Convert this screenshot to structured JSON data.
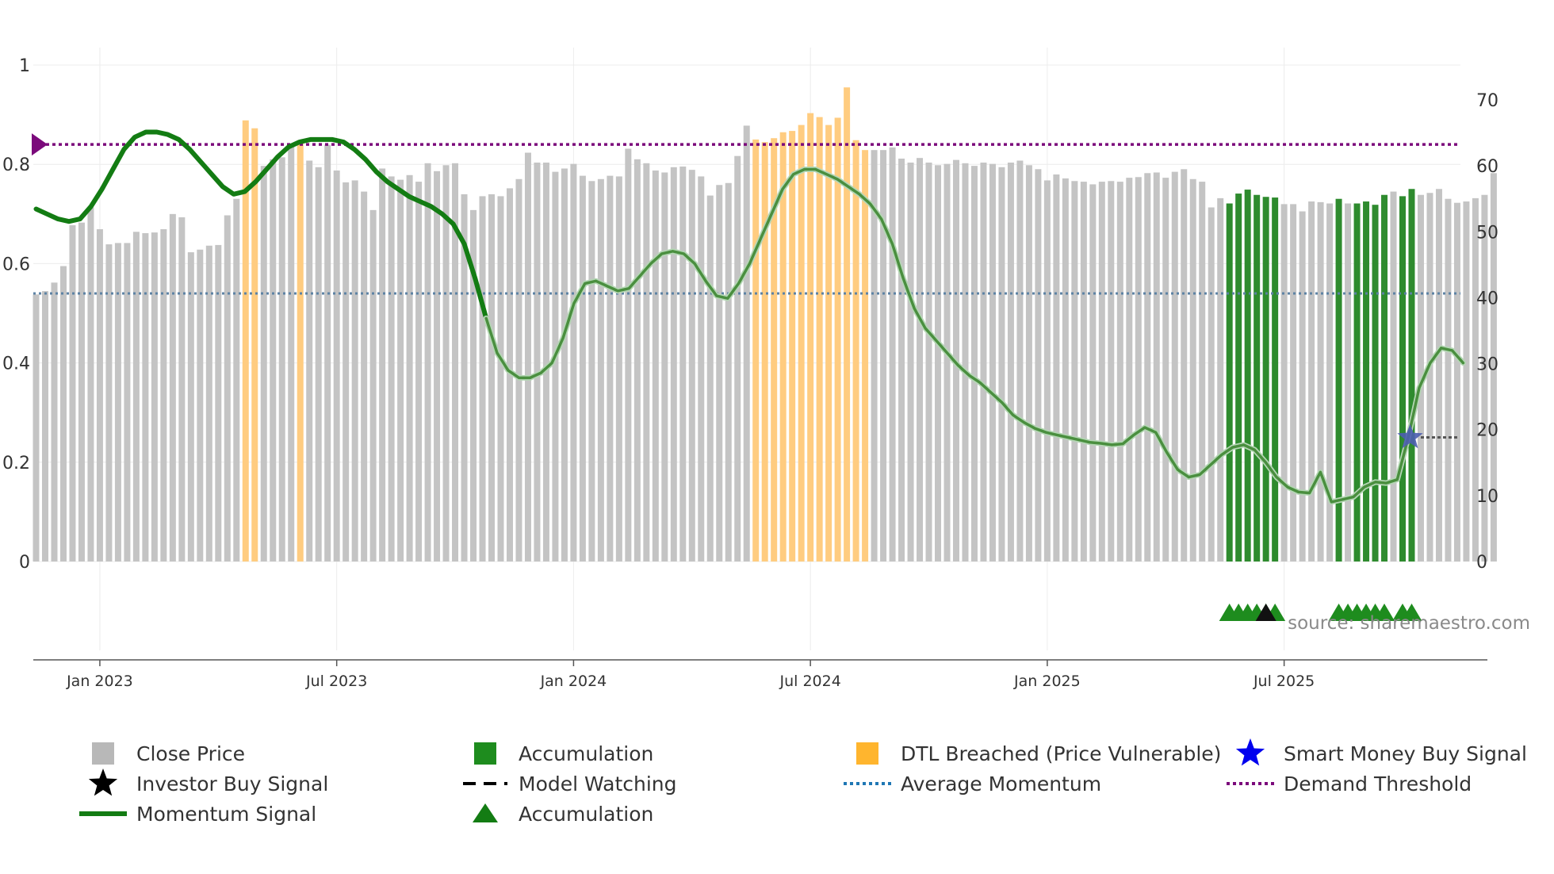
{
  "chart_data": {
    "type": "bar",
    "source": "source: sharemaestro.com",
    "left_axis": {
      "ticks": [
        0,
        0.2,
        0.4,
        0.6,
        0.8,
        1
      ],
      "labels": [
        "0",
        "0.2",
        "0.4",
        "0.6",
        "0.8",
        "1"
      ],
      "range": [
        0,
        1
      ]
    },
    "right_axis": {
      "ticks": [
        0,
        10,
        20,
        30,
        40,
        50,
        60,
        70
      ],
      "labels": [
        "0",
        "10",
        "20",
        "30",
        "40",
        "50",
        "60",
        "70"
      ],
      "range": [
        0,
        70
      ]
    },
    "x_ticks": [
      {
        "label": "Jan 2023",
        "week": 8
      },
      {
        "label": "Jul 2023",
        "week": 34
      },
      {
        "label": "Jan 2024",
        "week": 60
      },
      {
        "label": "Jul 2024",
        "week": 86
      },
      {
        "label": "Jan 2025",
        "week": 112
      },
      {
        "label": "Jul 2025",
        "week": 138
      }
    ],
    "x_range": [
      1,
      157
    ],
    "close_prices": [
      40.5,
      41.0,
      42.3,
      44.8,
      51.0,
      51.4,
      53.7,
      50.4,
      48.1,
      48.3,
      48.3,
      50.0,
      49.8,
      49.9,
      50.4,
      52.7,
      52.2,
      46.9,
      47.3,
      47.9,
      48.0,
      52.5,
      55.0,
      66.9,
      65.7,
      60.0,
      61.0,
      61.3,
      63.0,
      63.8,
      60.8,
      59.8,
      63.2,
      59.3,
      57.5,
      57.8,
      56.1,
      53.3,
      59.6,
      58.4,
      57.9,
      58.6,
      57.6,
      60.4,
      59.2,
      60.1,
      60.4,
      55.7,
      53.3,
      55.4,
      55.7,
      55.4,
      56.6,
      58.0,
      62.0,
      60.5,
      60.5,
      59.1,
      59.6,
      60.3,
      58.5,
      57.7,
      58.0,
      58.5,
      58.4,
      62.6,
      61.0,
      60.4,
      59.3,
      59.0,
      59.8,
      59.9,
      59.4,
      58.4,
      55.5,
      57.1,
      57.4,
      61.5,
      66.1,
      64.0,
      63.6,
      64.2,
      65.1,
      65.3,
      66.2,
      68.0,
      67.4,
      66.2,
      67.3,
      71.9,
      63.9,
      62.4,
      62.4,
      62.4,
      62.8,
      61.1,
      60.5,
      61.2,
      60.5,
      60.1,
      60.3,
      60.9,
      60.4,
      60.0,
      60.5,
      60.3,
      59.8,
      60.5,
      60.8,
      60.1,
      59.5,
      57.8,
      58.7,
      58.1,
      57.7,
      57.6,
      57.2,
      57.6,
      57.7,
      57.6,
      58.2,
      58.3,
      58.9,
      59.0,
      58.2,
      59.1,
      59.5,
      58.0,
      57.6,
      53.7,
      55.1,
      54.3,
      55.8,
      56.4,
      55.6,
      55.3,
      55.2,
      54.2,
      54.2,
      53.1,
      54.6,
      54.5,
      54.3,
      55.0,
      54.3,
      54.3,
      54.6,
      54.1,
      55.6,
      56.1,
      55.4,
      56.5,
      55.6,
      55.9,
      56.5,
      55.0,
      54.4,
      54.6,
      55.1,
      55.6,
      58.9
    ],
    "bar_colors": {
      "normal": "#c4c4c4",
      "dtl": "#ffcc80",
      "accumulation": "#2e8b2e"
    },
    "dtl_weeks": [
      24,
      25,
      30,
      80,
      81,
      82,
      83,
      84,
      85,
      86,
      87,
      88,
      89,
      90,
      91,
      92
    ],
    "accumulation_weeks": [
      132,
      133,
      134,
      135,
      136,
      137,
      144,
      146,
      147,
      148,
      149,
      151,
      152
    ],
    "momentum_signal": [
      [
        1,
        0.71
      ],
      [
        2,
        0.7
      ],
      [
        3,
        0.69
      ],
      [
        4,
        0.685
      ],
      [
        5,
        0.69
      ],
      [
        6,
        0.715
      ],
      [
        7,
        0.75
      ],
      [
        8,
        0.79
      ],
      [
        9,
        0.83
      ],
      [
        10,
        0.855
      ],
      [
        11,
        0.865
      ],
      [
        12,
        0.865
      ],
      [
        13,
        0.86
      ],
      [
        14,
        0.85
      ],
      [
        15,
        0.83
      ],
      [
        16,
        0.805
      ],
      [
        17,
        0.78
      ],
      [
        18,
        0.755
      ],
      [
        19,
        0.74
      ],
      [
        20,
        0.745
      ],
      [
        21,
        0.765
      ],
      [
        22,
        0.79
      ],
      [
        23,
        0.815
      ],
      [
        24,
        0.835
      ],
      [
        25,
        0.845
      ],
      [
        26,
        0.85
      ],
      [
        27,
        0.85
      ],
      [
        28,
        0.85
      ],
      [
        29,
        0.845
      ],
      [
        30,
        0.83
      ],
      [
        31,
        0.81
      ],
      [
        32,
        0.785
      ],
      [
        33,
        0.765
      ],
      [
        34,
        0.75
      ],
      [
        35,
        0.735
      ],
      [
        36,
        0.725
      ],
      [
        37,
        0.715
      ],
      [
        38,
        0.7
      ],
      [
        39,
        0.68
      ],
      [
        40,
        0.64
      ],
      [
        41,
        0.57
      ],
      [
        42,
        0.49
      ],
      [
        43,
        0.42
      ],
      [
        44,
        0.385
      ],
      [
        45,
        0.37
      ],
      [
        46,
        0.37
      ],
      [
        47,
        0.38
      ],
      [
        48,
        0.4
      ],
      [
        49,
        0.45
      ],
      [
        50,
        0.52
      ],
      [
        51,
        0.56
      ],
      [
        52,
        0.565
      ],
      [
        53,
        0.555
      ],
      [
        54,
        0.545
      ],
      [
        55,
        0.55
      ],
      [
        56,
        0.575
      ],
      [
        57,
        0.6
      ],
      [
        58,
        0.62
      ],
      [
        59,
        0.625
      ],
      [
        60,
        0.62
      ],
      [
        61,
        0.6
      ],
      [
        62,
        0.565
      ],
      [
        63,
        0.535
      ],
      [
        64,
        0.53
      ],
      [
        65,
        0.56
      ],
      [
        66,
        0.6
      ],
      [
        67,
        0.65
      ],
      [
        68,
        0.7
      ],
      [
        69,
        0.75
      ],
      [
        70,
        0.78
      ],
      [
        71,
        0.79
      ],
      [
        72,
        0.79
      ],
      [
        73,
        0.78
      ],
      [
        74,
        0.77
      ],
      [
        75,
        0.755
      ],
      [
        76,
        0.74
      ],
      [
        77,
        0.72
      ],
      [
        78,
        0.69
      ],
      [
        79,
        0.64
      ],
      [
        80,
        0.57
      ],
      [
        81,
        0.51
      ],
      [
        82,
        0.47
      ],
      [
        83,
        0.445
      ],
      [
        84,
        0.42
      ],
      [
        85,
        0.395
      ],
      [
        86,
        0.375
      ],
      [
        87,
        0.36
      ],
      [
        88,
        0.34
      ],
      [
        89,
        0.32
      ],
      [
        90,
        0.295
      ],
      [
        91,
        0.28
      ],
      [
        92,
        0.268
      ],
      [
        93,
        0.26
      ],
      [
        94,
        0.255
      ],
      [
        95,
        0.25
      ],
      [
        96,
        0.245
      ],
      [
        97,
        0.24
      ],
      [
        98,
        0.238
      ],
      [
        99,
        0.235
      ],
      [
        100,
        0.237
      ],
      [
        101,
        0.255
      ],
      [
        102,
        0.27
      ],
      [
        103,
        0.26
      ],
      [
        104,
        0.22
      ],
      [
        105,
        0.185
      ],
      [
        106,
        0.17
      ],
      [
        107,
        0.175
      ],
      [
        108,
        0.195
      ],
      [
        109,
        0.215
      ],
      [
        110,
        0.23
      ],
      [
        111,
        0.235
      ],
      [
        112,
        0.225
      ],
      [
        113,
        0.2
      ],
      [
        114,
        0.17
      ],
      [
        115,
        0.15
      ],
      [
        116,
        0.14
      ],
      [
        117,
        0.138
      ],
      [
        118,
        0.18
      ],
      [
        119,
        0.12
      ],
      [
        120,
        0.125
      ],
      [
        121,
        0.13
      ],
      [
        122,
        0.15
      ],
      [
        123,
        0.16
      ],
      [
        124,
        0.158
      ],
      [
        125,
        0.165
      ],
      [
        126,
        0.25
      ],
      [
        127,
        0.35
      ],
      [
        128,
        0.4
      ],
      [
        129,
        0.43
      ],
      [
        130,
        0.425
      ],
      [
        131,
        0.4
      ]
    ],
    "momentum_x_scale": 1.205,
    "average_momentum": 0.54,
    "demand_threshold": 0.84,
    "smart_money_buy_signal": {
      "week": 152,
      "value": 0.25
    },
    "model_watching": {
      "from_week": 153,
      "to_week": 157,
      "value": 0.25
    },
    "accumulation_markers": [
      132,
      133,
      134,
      135,
      136,
      137,
      144,
      145,
      146,
      147,
      148,
      149,
      151,
      152
    ],
    "investor_buy_markers": [
      136
    ],
    "legend": [
      {
        "label": "Close Price",
        "symbol": "square",
        "color": "#b8b8b8"
      },
      {
        "label": "Accumulation",
        "symbol": "square",
        "color": "#1e8c1e"
      },
      {
        "label": "DTL Breached (Price Vulnerable)",
        "symbol": "square",
        "color": "#ffb52e"
      },
      {
        "label": "Smart Money Buy Signal",
        "symbol": "star",
        "color": "#0000ee"
      },
      {
        "label": "Investor Buy Signal",
        "symbol": "star",
        "color": "#000000"
      },
      {
        "label": "Model Watching",
        "symbol": "dash",
        "color": "#000000"
      },
      {
        "label": "Average Momentum",
        "symbol": "dot",
        "color": "#1f77b4"
      },
      {
        "label": "Demand Threshold",
        "symbol": "dot",
        "color": "#7b0a7b"
      },
      {
        "label": "Momentum Signal",
        "symbol": "line",
        "color": "#137c13"
      },
      {
        "label": "Accumulation",
        "symbol": "triangle",
        "color": "#137c13"
      }
    ]
  }
}
